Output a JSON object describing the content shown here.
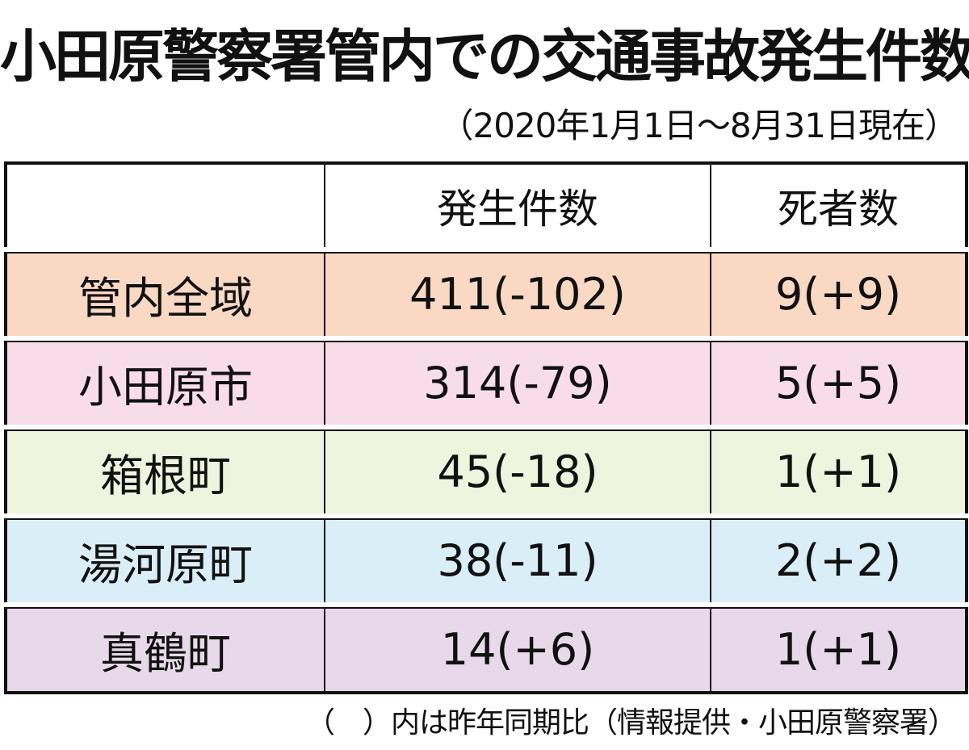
{
  "header": {
    "title": "小田原警察署管内での交通事故発生件数",
    "subtitle": "（2020年1月1日～8月31日現在）"
  },
  "table": {
    "columns": [
      "発生件数",
      "死者数"
    ],
    "rows": [
      [
        "管内全域",
        "411(-102)",
        "9(+9)"
      ],
      [
        "小田原市",
        "314(-79)",
        "5(+5)"
      ],
      [
        "箱根町",
        "45(-18)",
        "1(+1)"
      ],
      [
        "湯河原町",
        "38(-11)",
        "2(+2)"
      ],
      [
        "真鶴町",
        "14(+6)",
        "1(+1)"
      ]
    ],
    "row_colors": [
      "#f9d8c4",
      "#f8dde9",
      "#eef4dd",
      "#daeef8",
      "#e8d9ea"
    ]
  },
  "footer": {
    "note": "（　）内は昨年同期比（情報提供・小田原警察署）"
  }
}
